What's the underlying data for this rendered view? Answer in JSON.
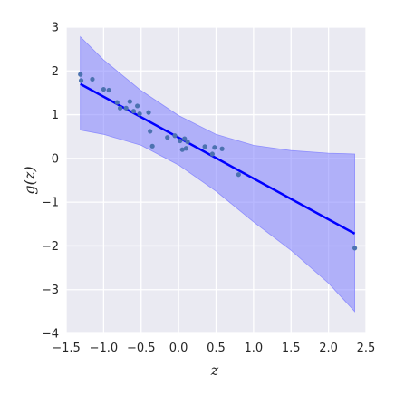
{
  "chart_data": {
    "type": "scatter",
    "xlabel": "z",
    "ylabel": "g(z)",
    "xlim": [
      -1.5,
      2.5
    ],
    "ylim": [
      -4,
      3
    ],
    "xticks": [
      "−1.5",
      "−1.0",
      "−0.5",
      "0.0",
      "0.5",
      "1.0",
      "1.5",
      "2.0",
      "2.5"
    ],
    "yticks": [
      "−4",
      "−3",
      "−2",
      "−1",
      "0",
      "1",
      "2",
      "3"
    ],
    "grid": true,
    "background": "#eaeaf2",
    "colors": {
      "points": "#4c72b0",
      "fit_line": "#0000ff",
      "band": "#8080ff"
    },
    "points": [
      {
        "x": -1.31,
        "y": 1.92
      },
      {
        "x": -1.3,
        "y": 1.78
      },
      {
        "x": -1.15,
        "y": 1.81
      },
      {
        "x": -1.0,
        "y": 1.58
      },
      {
        "x": -0.93,
        "y": 1.56
      },
      {
        "x": -0.82,
        "y": 1.28
      },
      {
        "x": -0.78,
        "y": 1.15
      },
      {
        "x": -0.7,
        "y": 1.15
      },
      {
        "x": -0.65,
        "y": 1.3
      },
      {
        "x": -0.6,
        "y": 1.08
      },
      {
        "x": -0.55,
        "y": 1.2
      },
      {
        "x": -0.52,
        "y": 1.02
      },
      {
        "x": -0.4,
        "y": 1.05
      },
      {
        "x": -0.38,
        "y": 0.62
      },
      {
        "x": -0.35,
        "y": 0.28
      },
      {
        "x": -0.15,
        "y": 0.48
      },
      {
        "x": -0.05,
        "y": 0.52
      },
      {
        "x": 0.02,
        "y": 0.4
      },
      {
        "x": 0.05,
        "y": 0.2
      },
      {
        "x": 0.08,
        "y": 0.45
      },
      {
        "x": 0.1,
        "y": 0.23
      },
      {
        "x": 0.12,
        "y": 0.38
      },
      {
        "x": 0.35,
        "y": 0.27
      },
      {
        "x": 0.45,
        "y": 0.1
      },
      {
        "x": 0.48,
        "y": 0.25
      },
      {
        "x": 0.58,
        "y": 0.22
      },
      {
        "x": 0.8,
        "y": -0.37
      },
      {
        "x": 2.35,
        "y": -2.05
      }
    ],
    "fit_line": [
      {
        "x": -1.31,
        "y": 1.7
      },
      {
        "x": 2.35,
        "y": -1.72
      }
    ],
    "band": {
      "upper": [
        {
          "x": -1.31,
          "y": 2.78
        },
        {
          "x": -1.0,
          "y": 2.25
        },
        {
          "x": -0.5,
          "y": 1.55
        },
        {
          "x": 0.0,
          "y": 0.98
        },
        {
          "x": 0.5,
          "y": 0.55
        },
        {
          "x": 1.0,
          "y": 0.3
        },
        {
          "x": 1.5,
          "y": 0.18
        },
        {
          "x": 2.0,
          "y": 0.12
        },
        {
          "x": 2.35,
          "y": 0.1
        }
      ],
      "lower": [
        {
          "x": -1.31,
          "y": 0.65
        },
        {
          "x": -1.0,
          "y": 0.55
        },
        {
          "x": -0.5,
          "y": 0.3
        },
        {
          "x": 0.0,
          "y": -0.15
        },
        {
          "x": 0.5,
          "y": -0.75
        },
        {
          "x": 1.0,
          "y": -1.45
        },
        {
          "x": 1.5,
          "y": -2.1
        },
        {
          "x": 2.0,
          "y": -2.85
        },
        {
          "x": 2.35,
          "y": -3.5
        }
      ]
    }
  }
}
